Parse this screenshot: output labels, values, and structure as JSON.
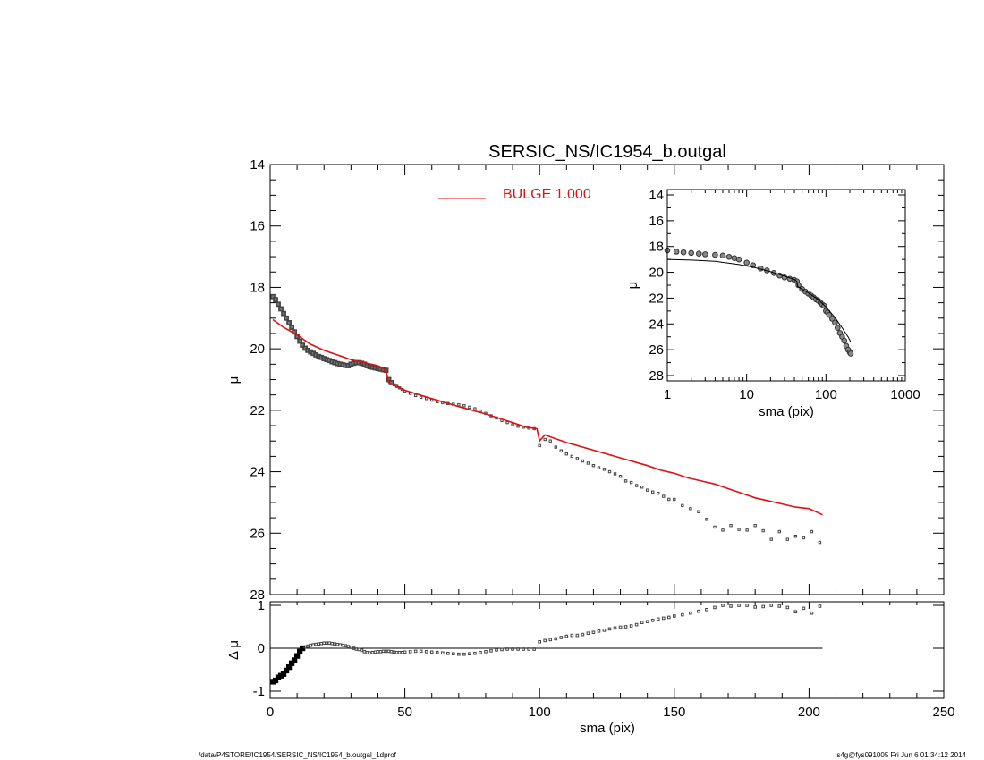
{
  "footer": {
    "left": "/data/P4STORE/IC1954/SERSIC_NS/IC1954_b.outgal_1dprof",
    "right": "s4g@fys091005  Fri Jun  6 01:34:12 2014"
  },
  "chart_data": [
    {
      "id": "main",
      "type": "scatter",
      "title": "SERSIC_NS/IC1954_b.outgal",
      "xlabel": "",
      "ylabel": "μ",
      "xlim": [
        0,
        250
      ],
      "ylim": [
        28,
        14
      ],
      "x_ticks": [
        "0",
        "50",
        "100",
        "150",
        "200",
        "250"
      ],
      "y_ticks": [
        "14",
        "16",
        "18",
        "20",
        "22",
        "24",
        "26",
        "28"
      ],
      "legend": {
        "label": "BULGE  1.000",
        "color": "#dd1111",
        "placement": "top-center"
      },
      "series": [
        {
          "kind": "observed",
          "marker": "square",
          "x": [
            1,
            2,
            3,
            4,
            5,
            6,
            7,
            8,
            9,
            10,
            11,
            12,
            13,
            14,
            15,
            16,
            17,
            18,
            19,
            20,
            21,
            22,
            23,
            24,
            25,
            26,
            27,
            28,
            29,
            30,
            31,
            32,
            33,
            34,
            35,
            36,
            37,
            38,
            39,
            40,
            41,
            42,
            43,
            44,
            45,
            46,
            47,
            48,
            49,
            50,
            52,
            54,
            56,
            58,
            60,
            62,
            64,
            66,
            68,
            70,
            72,
            74,
            76,
            78,
            80,
            82,
            84,
            86,
            88,
            90,
            92,
            94,
            96,
            98,
            100,
            102,
            104,
            106,
            108,
            110,
            112,
            114,
            116,
            118,
            120,
            122,
            124,
            126,
            128,
            130,
            132,
            134,
            136,
            138,
            140,
            142,
            144,
            146,
            148,
            150,
            153,
            156,
            159,
            162,
            165,
            168,
            171,
            174,
            177,
            180,
            183,
            186,
            189,
            192,
            195,
            198,
            201,
            204
          ],
          "y": [
            18.3,
            18.4,
            18.55,
            18.7,
            18.85,
            19.0,
            19.15,
            19.3,
            19.45,
            19.6,
            19.75,
            19.88,
            19.98,
            20.05,
            20.1,
            20.15,
            20.2,
            20.25,
            20.28,
            20.32,
            20.35,
            20.38,
            20.42,
            20.45,
            20.48,
            20.5,
            20.52,
            20.54,
            20.55,
            20.5,
            20.47,
            20.45,
            20.45,
            20.47,
            20.5,
            20.55,
            20.58,
            20.6,
            20.62,
            20.64,
            20.66,
            20.68,
            20.7,
            21.0,
            21.1,
            21.17,
            21.22,
            21.27,
            21.32,
            21.38,
            21.45,
            21.52,
            21.58,
            21.62,
            21.67,
            21.72,
            21.75,
            21.78,
            21.8,
            21.82,
            21.85,
            21.9,
            21.95,
            22.02,
            22.1,
            22.18,
            22.25,
            22.33,
            22.4,
            22.47,
            22.52,
            22.55,
            22.58,
            22.6,
            23.15,
            22.95,
            23.0,
            23.2,
            23.32,
            23.42,
            23.5,
            23.57,
            23.65,
            23.72,
            23.8,
            23.87,
            23.92,
            24.0,
            24.07,
            24.15,
            24.3,
            24.35,
            24.45,
            24.5,
            24.6,
            24.66,
            24.7,
            24.8,
            24.9,
            24.9,
            25.1,
            25.2,
            25.3,
            25.55,
            25.8,
            25.9,
            25.75,
            25.88,
            25.9,
            25.75,
            25.92,
            26.2,
            25.95,
            26.2,
            26.1,
            26.15,
            25.95,
            26.3
          ]
        },
        {
          "kind": "model",
          "name": "BULGE  1.000",
          "color": "#dd1111",
          "x": [
            1,
            5,
            10,
            15,
            20,
            25,
            30,
            35,
            40,
            43,
            44,
            50,
            60,
            70,
            80,
            90,
            95,
            99,
            100,
            102,
            105,
            110,
            120,
            130,
            140,
            145,
            150,
            155,
            160,
            165,
            170,
            175,
            180,
            185,
            190,
            195,
            200,
            205
          ],
          "y": [
            19.05,
            19.3,
            19.55,
            19.85,
            20.05,
            20.2,
            20.35,
            20.45,
            20.55,
            20.7,
            21.1,
            21.35,
            21.62,
            21.88,
            22.12,
            22.4,
            22.55,
            22.6,
            23.0,
            22.8,
            22.9,
            23.05,
            23.3,
            23.55,
            23.8,
            23.95,
            24.05,
            24.2,
            24.3,
            24.4,
            24.55,
            24.7,
            24.85,
            24.95,
            25.05,
            25.15,
            25.2,
            25.4
          ]
        }
      ]
    },
    {
      "id": "residual",
      "type": "scatter",
      "xlabel": "sma (pix)",
      "ylabel": "Δ μ",
      "xlim": [
        0,
        250
      ],
      "ylim": [
        -1,
        1
      ],
      "x_ticks": [
        "0",
        "50",
        "100",
        "150",
        "200",
        "250"
      ],
      "y_ticks": [
        "-1",
        "0",
        "1"
      ],
      "series": [
        {
          "kind": "residual",
          "marker": "square",
          "x": [
            1,
            2,
            3,
            4,
            5,
            6,
            7,
            8,
            9,
            10,
            11,
            12,
            13,
            14,
            15,
            16,
            17,
            18,
            19,
            20,
            21,
            22,
            23,
            24,
            25,
            26,
            27,
            28,
            29,
            30,
            31,
            32,
            33,
            34,
            35,
            36,
            37,
            38,
            39,
            40,
            41,
            42,
            43,
            44,
            45,
            46,
            47,
            48,
            49,
            50,
            52,
            54,
            56,
            58,
            60,
            62,
            64,
            66,
            68,
            70,
            72,
            74,
            76,
            78,
            80,
            82,
            84,
            86,
            88,
            90,
            92,
            94,
            96,
            98,
            100,
            102,
            104,
            106,
            108,
            110,
            112,
            114,
            116,
            118,
            120,
            122,
            124,
            126,
            128,
            130,
            132,
            134,
            136,
            138,
            140,
            142,
            144,
            146,
            148,
            150,
            153,
            156,
            159,
            162,
            165,
            168,
            171,
            174,
            177,
            180,
            183,
            186,
            189,
            192,
            195,
            198,
            201,
            204
          ],
          "y": [
            -0.78,
            -0.75,
            -0.68,
            -0.64,
            -0.6,
            -0.52,
            -0.44,
            -0.35,
            -0.28,
            -0.18,
            -0.08,
            0.0,
            0.03,
            0.05,
            0.07,
            0.08,
            0.09,
            0.1,
            0.11,
            0.12,
            0.12,
            0.12,
            0.11,
            0.1,
            0.09,
            0.08,
            0.07,
            0.06,
            0.04,
            0.02,
            0.0,
            -0.02,
            -0.03,
            -0.05,
            -0.08,
            -0.1,
            -0.11,
            -0.1,
            -0.09,
            -0.08,
            -0.08,
            -0.07,
            -0.07,
            -0.07,
            -0.08,
            -0.09,
            -0.1,
            -0.1,
            -0.1,
            -0.09,
            -0.08,
            -0.07,
            -0.07,
            -0.08,
            -0.09,
            -0.1,
            -0.11,
            -0.12,
            -0.13,
            -0.14,
            -0.14,
            -0.13,
            -0.12,
            -0.1,
            -0.08,
            -0.06,
            -0.04,
            -0.03,
            -0.02,
            -0.02,
            -0.02,
            -0.02,
            -0.02,
            -0.02,
            0.15,
            0.18,
            0.2,
            0.22,
            0.25,
            0.28,
            0.3,
            0.3,
            0.32,
            0.35,
            0.37,
            0.4,
            0.42,
            0.45,
            0.47,
            0.49,
            0.5,
            0.52,
            0.55,
            0.6,
            0.62,
            0.65,
            0.68,
            0.7,
            0.72,
            0.75,
            0.78,
            0.82,
            0.86,
            0.9,
            0.95,
            1.0,
            0.98,
            1.0,
            1.0,
            0.96,
            0.97,
            1.0,
            0.98,
            0.95,
            0.85,
            0.93,
            0.82,
            0.98
          ]
        },
        {
          "kind": "zero-line",
          "x": [
            1,
            205
          ],
          "y": [
            0,
            0
          ]
        }
      ]
    },
    {
      "id": "inset",
      "type": "scatter",
      "xlabel": "sma (pix)",
      "ylabel": "μ",
      "x_scale": "log",
      "xlim": [
        1,
        1000
      ],
      "ylim": [
        28,
        14
      ],
      "x_ticks": [
        "1",
        "10",
        "100",
        "1000"
      ],
      "y_ticks": [
        "14",
        "16",
        "18",
        "20",
        "22",
        "24",
        "26",
        "28"
      ],
      "series": [
        {
          "kind": "observed",
          "x": [
            1,
            1.3,
            1.6,
            2,
            2.5,
            3,
            4,
            5,
            6,
            7,
            8,
            10,
            12,
            15,
            18,
            22,
            26,
            30,
            35,
            40,
            43,
            45,
            50,
            55,
            60,
            65,
            70,
            75,
            80,
            85,
            90,
            95,
            100,
            105,
            110,
            120,
            130,
            140,
            150,
            160,
            170,
            180,
            190,
            200,
            205
          ],
          "y": [
            18.3,
            18.4,
            18.45,
            18.5,
            18.55,
            18.6,
            18.65,
            18.7,
            18.8,
            18.9,
            19.0,
            19.25,
            19.45,
            19.7,
            19.85,
            20.05,
            20.25,
            20.4,
            20.5,
            20.6,
            20.7,
            21.0,
            21.3,
            21.5,
            21.65,
            21.8,
            21.95,
            22.1,
            22.2,
            22.35,
            22.5,
            22.6,
            23.0,
            23.1,
            23.3,
            23.6,
            23.9,
            24.3,
            24.7,
            25.0,
            25.3,
            25.7,
            26.0,
            26.2,
            26.3
          ]
        },
        {
          "kind": "model",
          "x": [
            1,
            2,
            4,
            8,
            12,
            20,
            30,
            40,
            43,
            44,
            60,
            80,
            100,
            130,
            160,
            190,
            205
          ],
          "y": [
            19.0,
            19.05,
            19.15,
            19.4,
            19.6,
            19.95,
            20.3,
            20.55,
            20.7,
            21.1,
            21.6,
            22.1,
            22.7,
            23.5,
            24.3,
            25.0,
            25.4
          ]
        }
      ]
    }
  ]
}
